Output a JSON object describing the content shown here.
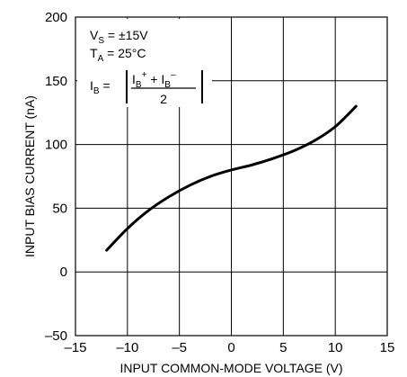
{
  "chart_data": {
    "type": "line",
    "xlabel": "INPUT COMMON-MODE VOLTAGE (V)",
    "ylabel": "INPUT BIAS CURRENT (nA)",
    "xlim": [
      -15,
      15
    ],
    "ylim": [
      -50,
      200
    ],
    "x_ticks": [
      -15,
      -10,
      -5,
      0,
      5,
      10,
      15
    ],
    "y_ticks": [
      -50,
      0,
      50,
      100,
      150,
      200
    ],
    "x_tick_labels": [
      "–15",
      "–10",
      "–5",
      "0",
      "5",
      "10",
      "15"
    ],
    "y_tick_labels": [
      "–50",
      "0",
      "50",
      "100",
      "150",
      "200"
    ],
    "grid": true,
    "series": [
      {
        "x": [
          -12,
          -10,
          -8,
          -6,
          -4,
          -2,
          0,
          2,
          4,
          6,
          8,
          10,
          12
        ],
        "y": [
          17,
          34,
          48,
          59,
          68,
          75,
          80,
          84,
          89,
          95,
          103,
          114,
          130
        ]
      }
    ],
    "annotation": {
      "vs_main": "V",
      "vs_sub": "S",
      "vs_value": " = ±15V",
      "ta_main": "T",
      "ta_sub": "A",
      "ta_value": " = 25°C",
      "ib_main": "I",
      "ib_sub": "B",
      "ib_eq": " =",
      "num_i1": "I",
      "num_b1": "B",
      "num_sup1": "+",
      "num_plus": " + I",
      "num_b2": "B",
      "num_sup2": "–",
      "denominator": "2"
    }
  }
}
